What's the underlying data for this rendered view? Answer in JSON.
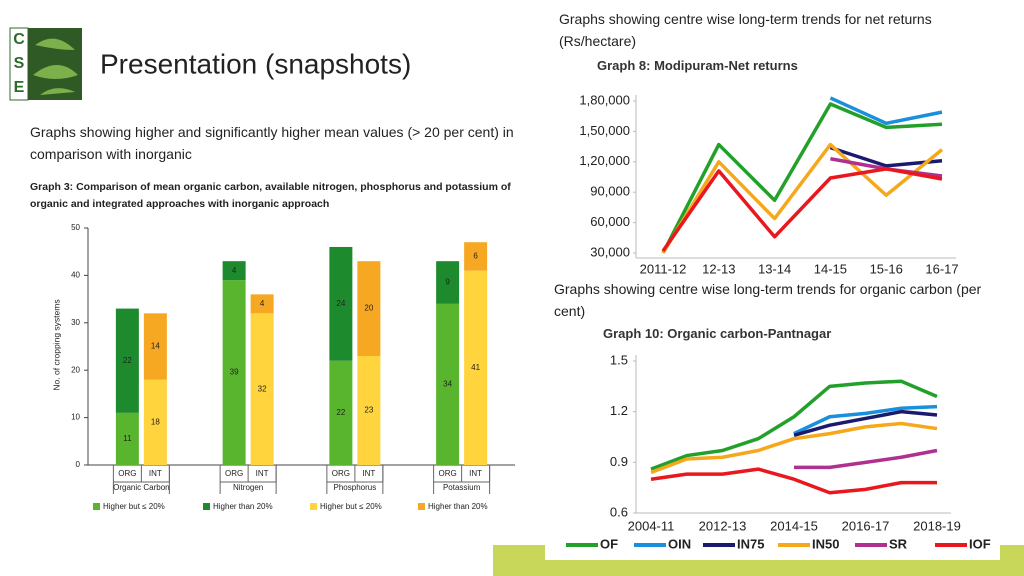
{
  "logo": [
    "C",
    "S",
    "E"
  ],
  "title": "Presentation (snapshots)",
  "left_caption": "Graphs showing higher and significantly higher mean values (> 20 per cent) in comparison with inorganic",
  "right_caption_top": "Graphs showing centre wise long-term trends for net returns (Rs/hectare)",
  "right_caption_bottom": "Graphs showing centre wise long-term trends for organic carbon (per cent)",
  "chart_data": [
    {
      "type": "stacked-bar",
      "title": "Graph 3: Comparison of mean organic carbon, available nitrogen, phosphorus and potassium of organic and integrated approaches with inorganic approach",
      "y_label": "No. of cropping systems",
      "categories": [
        "ORG",
        "INT",
        "ORG",
        "INT",
        "ORG",
        "INT",
        "ORG",
        "INT"
      ],
      "groups": [
        "Organic Carbon",
        "Nitrogen",
        "Phosphorus",
        "Potassium"
      ],
      "ylim": [
        0,
        50
      ],
      "yticks": [
        0,
        10,
        20,
        30,
        40,
        50
      ],
      "series": [
        {
          "name": "Higher but ≤ 20%",
          "color": "#5ab52e",
          "values": [
            11,
            null,
            39,
            null,
            22,
            null,
            34,
            null
          ]
        },
        {
          "name": "Higher than 20%",
          "color": "#1e8a2e",
          "values": [
            22,
            null,
            4,
            null,
            24,
            null,
            9,
            null
          ]
        },
        {
          "name": "Higher but ≤ 20%",
          "color": "#ffd43c",
          "values": [
            null,
            18,
            null,
            32,
            null,
            23,
            null,
            41
          ]
        },
        {
          "name": "Higher than 20%",
          "color": "#f7a823",
          "values": [
            null,
            14,
            null,
            4,
            null,
            20,
            null,
            6
          ]
        }
      ]
    },
    {
      "type": "line",
      "title": "Graph 8: Modipuram-Net returns",
      "categories": [
        "2011-12",
        "12-13",
        "13-14",
        "14-15",
        "15-16",
        "16-17"
      ],
      "ylim": [
        30000,
        180000
      ],
      "yticks": [
        {
          "value": 30000,
          "label": "30,000"
        },
        {
          "value": 60000,
          "label": "60,000"
        },
        {
          "value": 90000,
          "label": "90,000"
        },
        {
          "value": 120000,
          "label": "1,20,000"
        },
        {
          "value": 150000,
          "label": "1,50,000"
        },
        {
          "value": 180000,
          "label": "1,80,000"
        }
      ],
      "series": [
        {
          "color": "#22a02a",
          "values": [
            30000,
            137000,
            82000,
            177000,
            154000,
            157000
          ]
        },
        {
          "color": "#1a8fdc",
          "values": [
            null,
            null,
            null,
            183000,
            158000,
            169000
          ]
        },
        {
          "color": "#1a1a6e",
          "values": [
            null,
            null,
            null,
            134000,
            116000,
            121000
          ]
        },
        {
          "color": "#f6a81c",
          "values": [
            30000,
            120000,
            64000,
            137000,
            87000,
            132000
          ]
        },
        {
          "color": "#b0308f",
          "values": [
            null,
            null,
            null,
            123000,
            113000,
            106000
          ]
        },
        {
          "color": "#e8181e",
          "values": [
            32000,
            111000,
            46000,
            104000,
            113000,
            103000
          ]
        }
      ]
    },
    {
      "type": "line",
      "title": "Graph 10: Organic carbon-Pantnagar",
      "categories": [
        "2004-11",
        null,
        "2012-13",
        null,
        "2014-15",
        null,
        "2016-17",
        null,
        "2018-19"
      ],
      "ylim": [
        0.6,
        1.5
      ],
      "yticks": [
        0.6,
        0.9,
        1.2,
        1.5
      ],
      "series": [
        {
          "name": "OF",
          "color": "#22a02a",
          "values": [
            0.86,
            0.94,
            0.97,
            1.04,
            1.17,
            1.35,
            1.37,
            1.38,
            1.29
          ]
        },
        {
          "name": "OIN",
          "color": "#1a8fdc",
          "values": [
            null,
            null,
            null,
            null,
            1.07,
            1.17,
            1.19,
            1.22,
            1.23
          ]
        },
        {
          "name": "IN75",
          "color": "#1a1a6e",
          "values": [
            null,
            null,
            null,
            null,
            1.06,
            1.12,
            1.16,
            1.2,
            1.18
          ]
        },
        {
          "name": "IN50",
          "color": "#f6a81c",
          "values": [
            0.84,
            0.92,
            0.93,
            0.97,
            1.04,
            1.07,
            1.11,
            1.13,
            1.1
          ]
        },
        {
          "name": "SR",
          "color": "#b0308f",
          "values": [
            null,
            null,
            null,
            null,
            0.87,
            0.87,
            0.9,
            0.93,
            0.97
          ]
        },
        {
          "name": "IOF",
          "color": "#e8181e",
          "values": [
            0.8,
            0.83,
            0.83,
            0.86,
            0.8,
            0.72,
            0.74,
            0.78,
            0.78
          ]
        }
      ]
    }
  ]
}
